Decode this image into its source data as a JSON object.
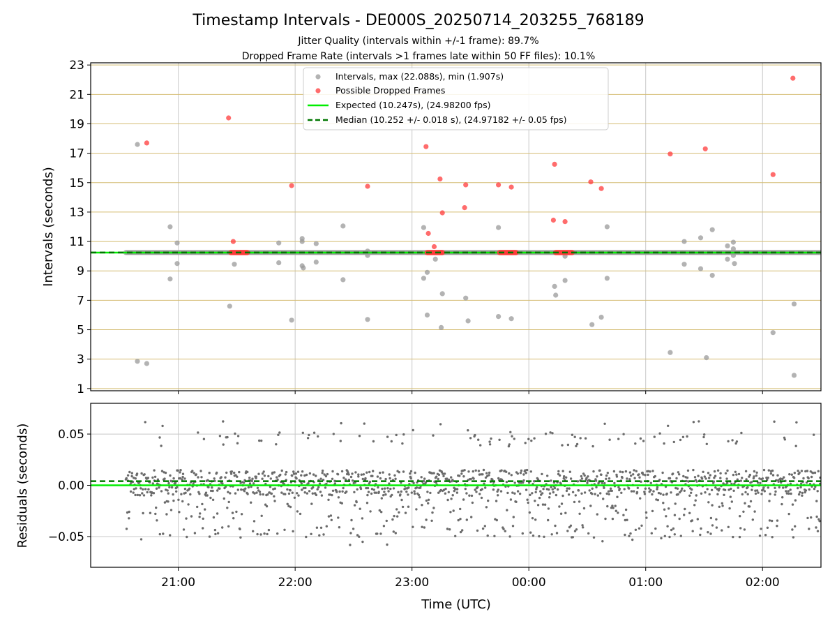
{
  "chart_data": {
    "type": "scatter",
    "title": "Timestamp Intervals - DE000S_20250714_203255_768189",
    "subtitle_lines": [
      "Jitter Quality (intervals within +/-1 frame): 89.7%",
      "Dropped Frame Rate (intervals >1 frames late within 50 FF files): 10.1%"
    ],
    "xlabel": "Time (UTC)",
    "x_tick_labels": [
      "21:00",
      "22:00",
      "23:00",
      "00:00",
      "01:00",
      "02:00"
    ],
    "x_ticks_hours": [
      21,
      22,
      23,
      24,
      25,
      26
    ],
    "xlim_hours": [
      20.25,
      26.5
    ],
    "grid": true,
    "legend_placement": "top-center",
    "panels": [
      {
        "name": "intervals",
        "ylabel": "Intervals (seconds)",
        "ylim": [
          0.85,
          23.15
        ],
        "yticks": [
          1,
          3,
          5,
          7,
          9,
          11,
          13,
          15,
          17,
          19,
          21,
          23
        ],
        "expected_line": 10.247,
        "median_line": 10.252
      },
      {
        "name": "residuals",
        "ylabel": "Residuals (seconds)",
        "ylim": [
          -0.08,
          0.08
        ],
        "yticks": [
          -0.05,
          0.0,
          0.05
        ],
        "ytick_labels": [
          "−0.05",
          "0.00",
          "0.05"
        ],
        "zero_line": 0.0,
        "median_offset": 0.004
      }
    ],
    "series": [
      {
        "name": "Intervals, max (22.088s), min (1.907s)",
        "color": "#999999",
        "baseline_band": {
          "x_start": 20.55,
          "x_end": 26.5,
          "y": 10.25
        },
        "points": [
          {
            "x": 20.65,
            "y": 17.6
          },
          {
            "x": 20.65,
            "y": 2.85
          },
          {
            "x": 20.73,
            "y": 2.7
          },
          {
            "x": 20.93,
            "y": 12.0
          },
          {
            "x": 20.93,
            "y": 8.45
          },
          {
            "x": 20.99,
            "y": 10.9
          },
          {
            "x": 20.99,
            "y": 9.5
          },
          {
            "x": 21.44,
            "y": 6.6
          },
          {
            "x": 21.48,
            "y": 9.45
          },
          {
            "x": 21.86,
            "y": 10.9
          },
          {
            "x": 21.86,
            "y": 9.55
          },
          {
            "x": 21.97,
            "y": 5.65
          },
          {
            "x": 22.06,
            "y": 11.2
          },
          {
            "x": 22.06,
            "y": 11.0
          },
          {
            "x": 22.06,
            "y": 9.35
          },
          {
            "x": 22.07,
            "y": 9.2
          },
          {
            "x": 22.18,
            "y": 10.85
          },
          {
            "x": 22.18,
            "y": 9.6
          },
          {
            "x": 22.41,
            "y": 12.05
          },
          {
            "x": 22.41,
            "y": 8.4
          },
          {
            "x": 22.62,
            "y": 10.35
          },
          {
            "x": 22.62,
            "y": 10.05
          },
          {
            "x": 22.62,
            "y": 5.7
          },
          {
            "x": 23.1,
            "y": 11.95
          },
          {
            "x": 23.1,
            "y": 8.5
          },
          {
            "x": 23.13,
            "y": 8.9
          },
          {
            "x": 23.13,
            "y": 6.0
          },
          {
            "x": 23.2,
            "y": 9.8
          },
          {
            "x": 23.25,
            "y": 5.15
          },
          {
            "x": 23.26,
            "y": 7.45
          },
          {
            "x": 23.46,
            "y": 7.15
          },
          {
            "x": 23.48,
            "y": 5.6
          },
          {
            "x": 23.74,
            "y": 11.95
          },
          {
            "x": 23.74,
            "y": 5.9
          },
          {
            "x": 23.85,
            "y": 5.75
          },
          {
            "x": 24.22,
            "y": 7.95
          },
          {
            "x": 24.23,
            "y": 7.35
          },
          {
            "x": 24.31,
            "y": 10.0
          },
          {
            "x": 24.31,
            "y": 8.35
          },
          {
            "x": 24.54,
            "y": 5.35
          },
          {
            "x": 24.62,
            "y": 5.85
          },
          {
            "x": 24.67,
            "y": 12.0
          },
          {
            "x": 24.67,
            "y": 8.5
          },
          {
            "x": 25.21,
            "y": 3.45
          },
          {
            "x": 25.33,
            "y": 11.0
          },
          {
            "x": 25.33,
            "y": 9.45
          },
          {
            "x": 25.47,
            "y": 11.25
          },
          {
            "x": 25.47,
            "y": 9.15
          },
          {
            "x": 25.52,
            "y": 3.1
          },
          {
            "x": 25.57,
            "y": 11.8
          },
          {
            "x": 25.57,
            "y": 8.7
          },
          {
            "x": 25.7,
            "y": 10.7
          },
          {
            "x": 25.7,
            "y": 9.8
          },
          {
            "x": 25.75,
            "y": 10.95
          },
          {
            "x": 25.75,
            "y": 10.5
          },
          {
            "x": 25.75,
            "y": 10.05
          },
          {
            "x": 25.76,
            "y": 9.5
          },
          {
            "x": 26.09,
            "y": 4.8
          },
          {
            "x": 26.27,
            "y": 6.75
          },
          {
            "x": 26.27,
            "y": 1.9
          }
        ]
      },
      {
        "name": "Possible Dropped Frames",
        "color": "#ff3b3b",
        "clusters": [
          {
            "x_start": 21.45,
            "x_end": 21.6,
            "y": 10.25
          },
          {
            "x_start": 23.13,
            "x_end": 23.27,
            "y": 10.25
          },
          {
            "x_start": 23.75,
            "x_end": 23.9,
            "y": 10.25
          },
          {
            "x_start": 24.23,
            "x_end": 24.38,
            "y": 10.25
          }
        ],
        "points": [
          {
            "x": 20.73,
            "y": 17.7
          },
          {
            "x": 21.43,
            "y": 19.4
          },
          {
            "x": 21.47,
            "y": 11.0
          },
          {
            "x": 21.97,
            "y": 14.8
          },
          {
            "x": 22.62,
            "y": 14.75
          },
          {
            "x": 23.12,
            "y": 17.45
          },
          {
            "x": 23.14,
            "y": 11.55
          },
          {
            "x": 23.19,
            "y": 10.65
          },
          {
            "x": 23.24,
            "y": 15.25
          },
          {
            "x": 23.26,
            "y": 12.95
          },
          {
            "x": 23.45,
            "y": 13.3
          },
          {
            "x": 23.46,
            "y": 14.85
          },
          {
            "x": 23.74,
            "y": 14.85
          },
          {
            "x": 23.85,
            "y": 14.7
          },
          {
            "x": 24.22,
            "y": 16.25
          },
          {
            "x": 24.21,
            "y": 12.45
          },
          {
            "x": 24.31,
            "y": 12.35
          },
          {
            "x": 24.53,
            "y": 15.05
          },
          {
            "x": 24.62,
            "y": 14.6
          },
          {
            "x": 25.21,
            "y": 16.95
          },
          {
            "x": 25.51,
            "y": 17.3
          },
          {
            "x": 26.09,
            "y": 15.55
          },
          {
            "x": 26.26,
            "y": 22.1
          }
        ]
      },
      {
        "name": "Expected (10.247s), (24.98200 fps)",
        "color": "#00ee00",
        "value": 10.247
      },
      {
        "name": "Median (10.252 +/- 0.018 s), (24.97182 +/- 0.05 fps)",
        "color": "#007700",
        "value": 10.252
      }
    ],
    "residuals": {
      "color": "#6b6b6b",
      "x_range": [
        20.55,
        26.5
      ],
      "approx_point_count": 1400,
      "core_range": [
        -0.01,
        0.015
      ],
      "outer_levels": [
        -0.045,
        -0.035,
        0.045
      ],
      "max": 0.063,
      "min": -0.06
    }
  }
}
